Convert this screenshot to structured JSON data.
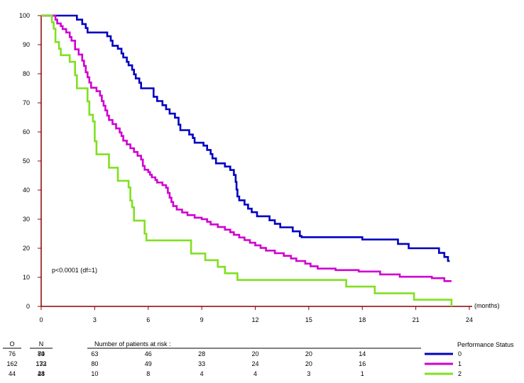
{
  "chart_data": {
    "type": "line",
    "step": true,
    "title": "",
    "xlabel": "",
    "ylabel": "",
    "x_unit_label": "(months)",
    "xlim": [
      0,
      24
    ],
    "ylim": [
      0,
      100
    ],
    "xticks": [
      0,
      3,
      6,
      9,
      12,
      15,
      18,
      21,
      24
    ],
    "yticks": [
      0,
      10,
      20,
      30,
      40,
      50,
      60,
      70,
      80,
      90,
      100
    ],
    "grid": false,
    "annotation": "p<0.0001 (df=1)",
    "legend": {
      "title": "Performance Status",
      "placement": "bottom-right",
      "entries": [
        "0",
        "1",
        "2"
      ]
    },
    "series": [
      {
        "name": "0",
        "color": "#0000c0",
        "points": [
          [
            0,
            100
          ],
          [
            1.8,
            100
          ],
          [
            2.0,
            98.6
          ],
          [
            2.3,
            97.1
          ],
          [
            2.5,
            95.7
          ],
          [
            2.6,
            94.2
          ],
          [
            3.6,
            94.2
          ],
          [
            3.7,
            92.9
          ],
          [
            3.9,
            91.4
          ],
          [
            4.0,
            89.6
          ],
          [
            4.3,
            88.6
          ],
          [
            4.5,
            87.0
          ],
          [
            4.6,
            85.6
          ],
          [
            4.8,
            84.1
          ],
          [
            4.9,
            82.9
          ],
          [
            5.1,
            81.4
          ],
          [
            5.2,
            79.8
          ],
          [
            5.3,
            78.4
          ],
          [
            5.5,
            76.9
          ],
          [
            5.6,
            75.0
          ],
          [
            6.2,
            75.0
          ],
          [
            6.3,
            72.1
          ],
          [
            6.5,
            70.6
          ],
          [
            6.8,
            69.2
          ],
          [
            7.0,
            67.8
          ],
          [
            7.2,
            66.3
          ],
          [
            7.5,
            64.9
          ],
          [
            7.7,
            62.5
          ],
          [
            7.8,
            60.6
          ],
          [
            8.3,
            59.1
          ],
          [
            8.5,
            57.9
          ],
          [
            8.6,
            56.3
          ],
          [
            9.1,
            55.3
          ],
          [
            9.3,
            53.8
          ],
          [
            9.5,
            52.4
          ],
          [
            9.6,
            50.9
          ],
          [
            9.8,
            49.2
          ],
          [
            10.3,
            48.1
          ],
          [
            10.6,
            46.9
          ],
          [
            10.8,
            45.2
          ],
          [
            10.9,
            42.8
          ],
          [
            10.95,
            40.2
          ],
          [
            11.0,
            37.8
          ],
          [
            11.1,
            36.5
          ],
          [
            11.4,
            35.0
          ],
          [
            11.6,
            33.6
          ],
          [
            11.8,
            32.4
          ],
          [
            12.1,
            31.0
          ],
          [
            12.8,
            29.6
          ],
          [
            13.1,
            28.4
          ],
          [
            13.4,
            27.2
          ],
          [
            14.1,
            25.8
          ],
          [
            14.5,
            24.2
          ],
          [
            14.6,
            23.8
          ],
          [
            17.9,
            23.8
          ],
          [
            18.0,
            23.0
          ],
          [
            19.6,
            23.0
          ],
          [
            20.0,
            21.5
          ],
          [
            20.6,
            20.0
          ],
          [
            21.9,
            20.0
          ],
          [
            22.3,
            18.4
          ],
          [
            22.6,
            17.0
          ],
          [
            22.8,
            15.6
          ],
          [
            22.9,
            15.6
          ]
        ]
      },
      {
        "name": "1",
        "color": "#d000d0",
        "points": [
          [
            0,
            100
          ],
          [
            0.6,
            100
          ],
          [
            0.8,
            98.6
          ],
          [
            0.9,
            97.3
          ],
          [
            1.1,
            96.4
          ],
          [
            1.2,
            95.4
          ],
          [
            1.4,
            94.2
          ],
          [
            1.6,
            92.6
          ],
          [
            1.7,
            91.4
          ],
          [
            1.9,
            88.4
          ],
          [
            2.1,
            86.6
          ],
          [
            2.3,
            84.5
          ],
          [
            2.4,
            82.7
          ],
          [
            2.5,
            80.5
          ],
          [
            2.6,
            78.8
          ],
          [
            2.7,
            77.0
          ],
          [
            2.8,
            75.2
          ],
          [
            3.1,
            74.0
          ],
          [
            3.3,
            72.5
          ],
          [
            3.4,
            70.6
          ],
          [
            3.5,
            69.0
          ],
          [
            3.6,
            67.4
          ],
          [
            3.7,
            65.6
          ],
          [
            3.8,
            64.1
          ],
          [
            4.0,
            62.7
          ],
          [
            4.2,
            61.2
          ],
          [
            4.4,
            59.8
          ],
          [
            4.5,
            58.6
          ],
          [
            4.6,
            57.0
          ],
          [
            4.8,
            55.7
          ],
          [
            5.0,
            54.4
          ],
          [
            5.2,
            53.1
          ],
          [
            5.4,
            51.8
          ],
          [
            5.6,
            50.5
          ],
          [
            5.7,
            48.3
          ],
          [
            5.8,
            47.0
          ],
          [
            6.0,
            46.2
          ],
          [
            6.1,
            45.3
          ],
          [
            6.2,
            44.4
          ],
          [
            6.4,
            43.5
          ],
          [
            6.5,
            42.6
          ],
          [
            6.8,
            41.7
          ],
          [
            7.0,
            40.8
          ],
          [
            7.1,
            39.0
          ],
          [
            7.2,
            37.4
          ],
          [
            7.3,
            35.9
          ],
          [
            7.4,
            34.5
          ],
          [
            7.6,
            33.3
          ],
          [
            7.9,
            32.3
          ],
          [
            8.2,
            31.4
          ],
          [
            8.6,
            30.5
          ],
          [
            9.0,
            30.0
          ],
          [
            9.3,
            29.1
          ],
          [
            9.5,
            28.2
          ],
          [
            9.9,
            27.3
          ],
          [
            10.3,
            26.4
          ],
          [
            10.6,
            25.5
          ],
          [
            10.8,
            24.6
          ],
          [
            11.1,
            23.7
          ],
          [
            11.4,
            22.8
          ],
          [
            11.7,
            21.9
          ],
          [
            12.0,
            21.0
          ],
          [
            12.3,
            20.1
          ],
          [
            12.6,
            19.2
          ],
          [
            13.1,
            18.3
          ],
          [
            13.6,
            17.4
          ],
          [
            14.0,
            16.5
          ],
          [
            14.3,
            15.6
          ],
          [
            14.8,
            14.7
          ],
          [
            15.1,
            13.8
          ],
          [
            15.5,
            13.0
          ],
          [
            16.5,
            12.5
          ],
          [
            17.8,
            12.0
          ],
          [
            19.0,
            11.0
          ],
          [
            20.1,
            10.2
          ],
          [
            21.9,
            9.7
          ],
          [
            22.6,
            8.7
          ],
          [
            23.0,
            8.7
          ]
        ]
      },
      {
        "name": "2",
        "color": "#80e020",
        "points": [
          [
            0,
            100
          ],
          [
            0.5,
            100
          ],
          [
            0.6,
            97.7
          ],
          [
            0.7,
            95.5
          ],
          [
            0.8,
            90.9
          ],
          [
            1.0,
            88.6
          ],
          [
            1.1,
            86.4
          ],
          [
            1.5,
            86.4
          ],
          [
            1.6,
            84.1
          ],
          [
            1.8,
            84.1
          ],
          [
            1.9,
            79.5
          ],
          [
            2.0,
            75.0
          ],
          [
            2.5,
            75.0
          ],
          [
            2.6,
            70.5
          ],
          [
            2.7,
            65.9
          ],
          [
            2.9,
            63.6
          ],
          [
            3.0,
            56.8
          ],
          [
            3.1,
            52.3
          ],
          [
            3.7,
            52.3
          ],
          [
            3.8,
            47.7
          ],
          [
            4.2,
            47.7
          ],
          [
            4.3,
            43.2
          ],
          [
            4.8,
            43.2
          ],
          [
            4.9,
            40.9
          ],
          [
            5.0,
            36.4
          ],
          [
            5.1,
            34.1
          ],
          [
            5.2,
            29.5
          ],
          [
            5.7,
            29.5
          ],
          [
            5.8,
            25.0
          ],
          [
            5.9,
            22.7
          ],
          [
            8.3,
            22.7
          ],
          [
            8.4,
            18.2
          ],
          [
            9.1,
            18.2
          ],
          [
            9.2,
            15.9
          ],
          [
            9.8,
            15.9
          ],
          [
            9.9,
            13.6
          ],
          [
            10.2,
            13.6
          ],
          [
            10.3,
            11.4
          ],
          [
            10.9,
            11.4
          ],
          [
            11.0,
            9.1
          ],
          [
            17.0,
            9.1
          ],
          [
            17.1,
            6.8
          ],
          [
            18.6,
            6.8
          ],
          [
            18.7,
            4.5
          ],
          [
            20.8,
            4.5
          ],
          [
            20.9,
            2.3
          ],
          [
            22.9,
            2.3
          ],
          [
            23.0,
            0
          ]
        ]
      }
    ]
  },
  "risk_table": {
    "col_o": "O",
    "col_n": "N",
    "title": "Number of patients at risk :",
    "rows": [
      {
        "o": "76",
        "n": "84",
        "counts": [
          "79",
          "63",
          "46",
          "28",
          "20",
          "20",
          "14"
        ]
      },
      {
        "o": "162",
        "n": "172",
        "counts": [
          "133",
          "80",
          "49",
          "33",
          "24",
          "20",
          "16"
        ]
      },
      {
        "o": "44",
        "n": "44",
        "counts": [
          "28",
          "10",
          "8",
          "4",
          "4",
          "3",
          "1"
        ]
      }
    ]
  }
}
